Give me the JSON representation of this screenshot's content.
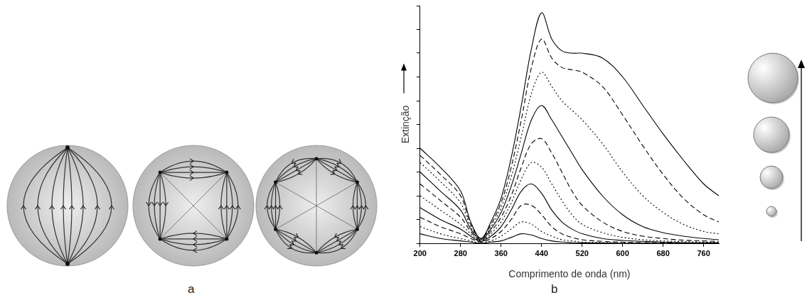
{
  "panel_labels": [
    "a",
    "b"
  ],
  "chart_data": {
    "type": "line",
    "x_label": "Comprimento de onda (nm)",
    "y_label": "Extinção",
    "x": [
      200,
      240,
      280,
      300,
      320,
      340,
      360,
      380,
      400,
      420,
      440,
      460,
      480,
      500,
      520,
      560,
      600,
      640,
      680,
      720,
      760,
      790
    ],
    "series": [
      {
        "color": "#000000",
        "line_style": "solid",
        "values": [
          0.4,
          0.32,
          0.22,
          0.09,
          0.02,
          0.09,
          0.19,
          0.36,
          0.58,
          0.82,
          0.97,
          0.86,
          0.81,
          0.8,
          0.8,
          0.78,
          0.7,
          0.58,
          0.46,
          0.35,
          0.25,
          0.2
        ]
      },
      {
        "color": "#000000",
        "line_style": "dashed",
        "values": [
          0.37,
          0.29,
          0.2,
          0.08,
          0.02,
          0.08,
          0.17,
          0.32,
          0.52,
          0.74,
          0.86,
          0.78,
          0.74,
          0.73,
          0.72,
          0.66,
          0.54,
          0.41,
          0.29,
          0.19,
          0.12,
          0.09
        ]
      },
      {
        "color": "#000000",
        "line_style": "dotted",
        "values": [
          0.34,
          0.26,
          0.17,
          0.07,
          0.018,
          0.07,
          0.15,
          0.28,
          0.45,
          0.63,
          0.72,
          0.66,
          0.6,
          0.56,
          0.52,
          0.42,
          0.3,
          0.2,
          0.13,
          0.08,
          0.05,
          0.04
        ]
      },
      {
        "color": "#000000",
        "line_style": "solid",
        "values": [
          0.3,
          0.22,
          0.14,
          0.06,
          0.015,
          0.06,
          0.13,
          0.24,
          0.38,
          0.52,
          0.58,
          0.52,
          0.45,
          0.38,
          0.31,
          0.2,
          0.12,
          0.07,
          0.045,
          0.03,
          0.02,
          0.015
        ]
      },
      {
        "color": "#000000",
        "line_style": "dashed",
        "values": [
          0.25,
          0.18,
          0.11,
          0.05,
          0.012,
          0.05,
          0.11,
          0.2,
          0.32,
          0.42,
          0.44,
          0.38,
          0.3,
          0.22,
          0.16,
          0.09,
          0.05,
          0.03,
          0.02,
          0.013,
          0.01,
          0.008
        ]
      },
      {
        "color": "#000000",
        "line_style": "dotted",
        "values": [
          0.2,
          0.14,
          0.08,
          0.04,
          0.01,
          0.04,
          0.09,
          0.17,
          0.27,
          0.34,
          0.32,
          0.25,
          0.18,
          0.12,
          0.08,
          0.045,
          0.025,
          0.015,
          0.01,
          0.007,
          0.005,
          0.004
        ]
      },
      {
        "color": "#000000",
        "line_style": "solid",
        "values": [
          0.15,
          0.1,
          0.06,
          0.03,
          0.008,
          0.03,
          0.07,
          0.14,
          0.22,
          0.25,
          0.21,
          0.14,
          0.09,
          0.06,
          0.04,
          0.02,
          0.012,
          0.008,
          0.005,
          0.003,
          0.002,
          0.002
        ]
      },
      {
        "color": "#000000",
        "line_style": "dashed",
        "values": [
          0.11,
          0.07,
          0.04,
          0.02,
          0.005,
          0.02,
          0.05,
          0.1,
          0.16,
          0.16,
          0.12,
          0.07,
          0.04,
          0.025,
          0.015,
          0.008,
          0.005,
          0.003,
          0.002,
          0.001,
          0.001,
          0
        ]
      },
      {
        "color": "#000000",
        "line_style": "dotted",
        "values": [
          0.07,
          0.04,
          0.02,
          0.01,
          0,
          0.01,
          0.03,
          0.06,
          0.09,
          0.08,
          0.05,
          0.03,
          0.015,
          0.01,
          0.005,
          0.003,
          0.002,
          0.001,
          0,
          0,
          0,
          0
        ]
      },
      {
        "color": "#000000",
        "line_style": "solid",
        "values": [
          0.04,
          0.02,
          0.01,
          0.005,
          0,
          0.005,
          0.01,
          0.025,
          0.04,
          0.035,
          0.02,
          0.01,
          0.005,
          0.003,
          0.002,
          0.001,
          0,
          0,
          0,
          0,
          0,
          0
        ]
      }
    ],
    "xlim": [
      200,
      790
    ],
    "xticks": [
      200,
      280,
      360,
      440,
      520,
      600,
      680,
      760
    ],
    "ylim": [
      0,
      1
    ],
    "yticks": [
      0,
      0.1,
      0.2,
      0.3,
      0.4,
      0.5,
      0.6,
      0.7,
      0.8,
      0.9,
      1
    ],
    "grid": false,
    "tick_labels": "x"
  }
}
